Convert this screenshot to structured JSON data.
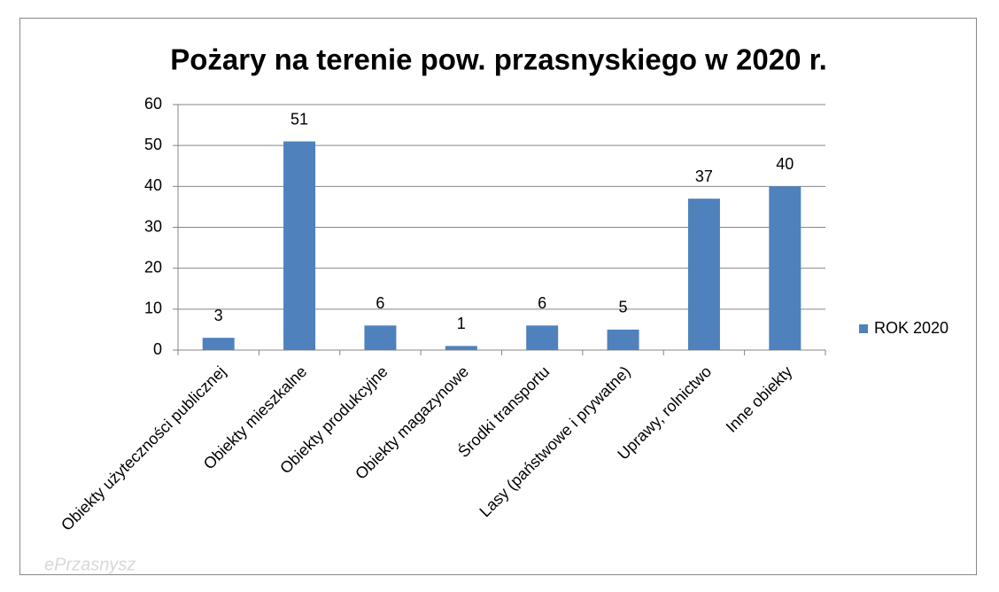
{
  "chart_data": {
    "type": "bar",
    "title": "Pożary na terenie pow. przasnyskiego w 2020 r.",
    "categories": [
      "Obiekty użyteczności publicznej",
      "Obiekty mieszkalne",
      "Obiekty produkcyjne",
      "Obiekty magazynowe",
      "Środki transportu",
      "Lasy (państwowe i prywatne)",
      "Uprawy, rolnictwo",
      "Inne obiekty"
    ],
    "series": [
      {
        "name": "ROK 2020",
        "color": "#4f81bd",
        "values": [
          3,
          51,
          6,
          1,
          6,
          5,
          37,
          40
        ]
      }
    ],
    "ylim": [
      0,
      60
    ],
    "yticks": [
      0,
      10,
      20,
      30,
      40,
      50,
      60
    ],
    "grid": true,
    "legend": "right",
    "data_labels": true,
    "watermark": "ePrzasnysz"
  }
}
